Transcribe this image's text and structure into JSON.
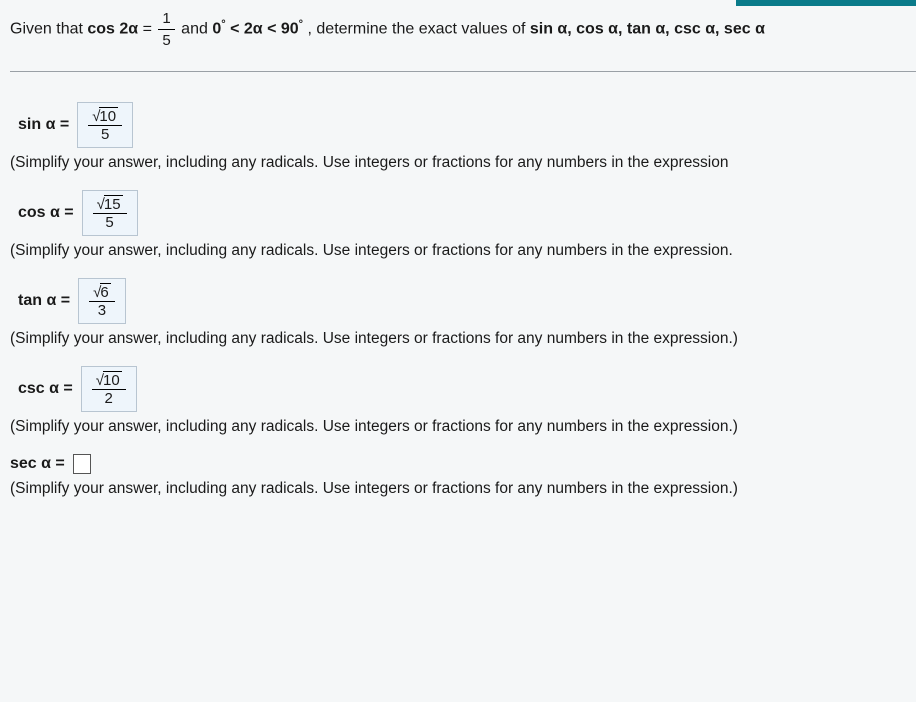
{
  "question": {
    "prefix": "Given that ",
    "cos2a": "cos 2α",
    "eq": " = ",
    "frac_num": "1",
    "frac_den": "5",
    "and": " and ",
    "range_left": "0",
    "deg": "°",
    "lt1": " < ",
    "two_alpha": "2α",
    "lt2": " < ",
    "range_right": "90",
    "suffix": ", determine the exact values of ",
    "list": "sin α, cos α, tan α, csc α, sec α"
  },
  "answers": {
    "sin": {
      "label": "sin α =",
      "num_radicand": "10",
      "den": "5"
    },
    "cos": {
      "label": "cos α =",
      "num_radicand": "15",
      "den": "5"
    },
    "tan": {
      "label": "tan α =",
      "num_radicand": "6",
      "den": "3"
    },
    "csc": {
      "label": "csc α =",
      "num_radicand": "10",
      "den": "2"
    },
    "sec": {
      "label": "sec α ="
    }
  },
  "hints": {
    "h1": "(Simplify your answer, including any radicals. Use integers or fractions for any numbers in the expression",
    "h2": "(Simplify your answer, including any radicals. Use integers or fractions for any numbers in the expression.",
    "h3": "(Simplify your answer, including any radicals. Use integers or fractions for any numbers in the expression.)",
    "h4": "(Simplify your answer, including any radicals. Use integers or fractions for any numbers in the expression.)",
    "h5": "(Simplify your answer, including any radicals. Use integers or fractions for any numbers in the expression.)"
  }
}
